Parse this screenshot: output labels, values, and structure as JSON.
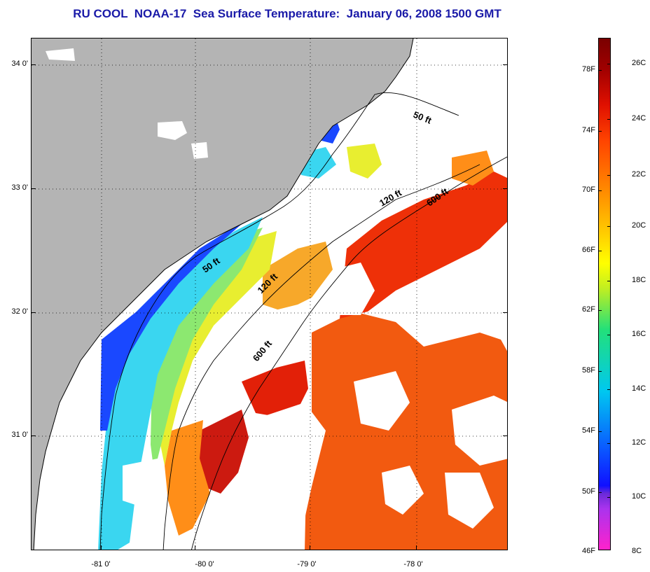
{
  "title": "RU COOL  NOAA-17  Sea Surface Temperature:  January 06, 2008 1500 GMT",
  "colors": {
    "land": "#b4b4b4",
    "title": "#1a1aa8",
    "no_data": "#ffffff"
  },
  "latitude_labels": [
    "34 0'",
    "33 0'",
    "32 0'",
    "31 0'"
  ],
  "longitude_labels": [
    "-81 0'",
    "-80 0'",
    "-79 0'",
    "-78 0'"
  ],
  "contour_labels": [
    "50 ft",
    "120 ft",
    "600 ft",
    "50 ft",
    "120 ft",
    "600 ft"
  ],
  "colorbar": {
    "fahrenheit_labels": [
      "78F",
      "74F",
      "70F",
      "66F",
      "62F",
      "58F",
      "54F",
      "50F",
      "46F"
    ],
    "celsius_labels": [
      "26C",
      "24C",
      "22C",
      "20C",
      "18C",
      "16C",
      "14C",
      "12C",
      "10C",
      "8C"
    ]
  }
}
